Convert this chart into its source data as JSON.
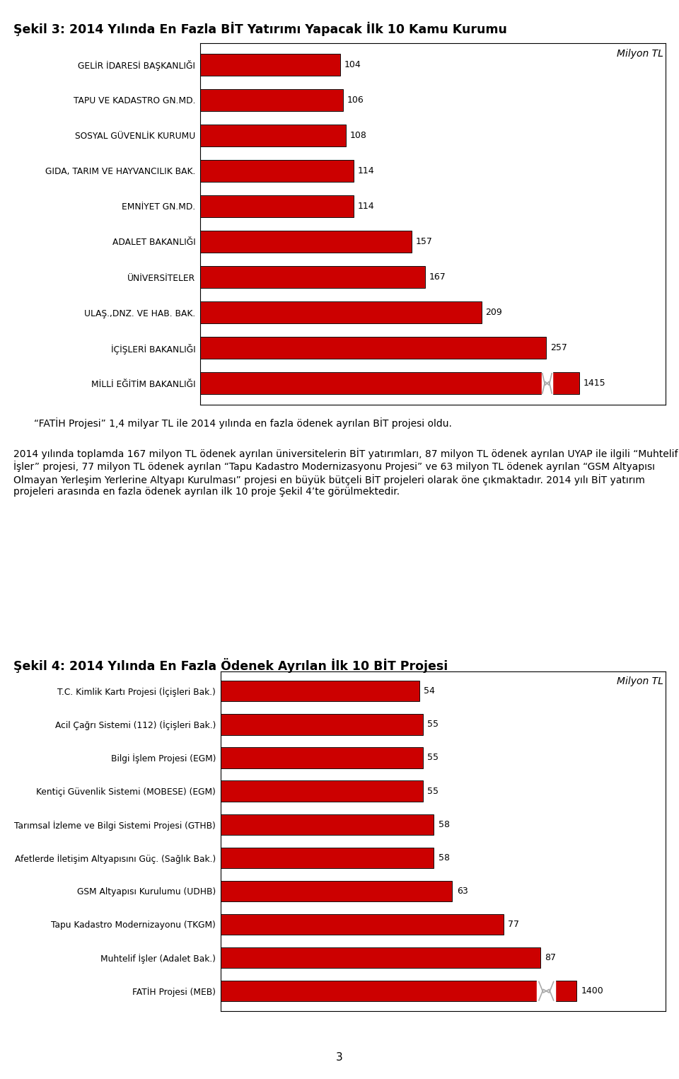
{
  "title1": "Şekil 3: 2014 Yılında En Fazla BİT Yatırımı Yapacak İlk 10 Kamu Kurumu",
  "chart1_categories": [
    "MİLLİ EĞİTİM BAKANLIĞI",
    "İÇİŞLERİ BAKANLIĞI",
    "ULAŞ.,DNZ. VE HAB. BAK.",
    "ÜNİVERSİTELER",
    "ADALET BAKANLIĞI",
    "EMNİYET GN.MD.",
    "GIDA, TARIM VE HAYVANCILIK BAK.",
    "SOSYAL GÜVENLİK KURUMU",
    "TAPU VE KADASTRO GN.MD.",
    "GELİR İDARESİ BAŞKANLIĞI"
  ],
  "chart1_values": [
    1415,
    257,
    209,
    167,
    157,
    114,
    114,
    108,
    106,
    104
  ],
  "chart1_display_labels": [
    "1415",
    "257",
    "209",
    "167",
    "157",
    "114",
    "114",
    "108",
    "106",
    "104"
  ],
  "chart1_bar_color": "#cc0000",
  "chart1_bar_edge_color": "#111111",
  "milyon_tl_label": "Milyon TL",
  "paragraph1": "“FATİH Projesi” 1,4 milyar TL ile 2014 yılında en fazla ödenek ayrılan BİT projesi oldu.",
  "paragraph2": "2014 yılında toplamda 167 milyon TL ödenek ayrılan üniversitelerin BİT yatırımları, 87 milyon TL ödenek ayrılan UYAP ile ilgili “Muhtelif İşler” projesi, 77 milyon TL ödenek ayrılan “Tapu Kadastro Modernizasyonu Projesi” ve 63 milyon TL ödenek ayrılan “GSM Altyapısı Olmayan Yerleşim Yerlerine Altyapı Kurulması” projesi en büyük bütçeli BİT projeleri olarak öne çıkmaktadır. 2014 yılı BİT yatırım projeleri arasında en fazla ödenek ayrılan ilk 10 proje Şekil 4’te görülmektedir.",
  "title2": "Şekil 4: 2014 Yılında En Fazla Ödenek Ayrılan İlk 10 BİT Projesi",
  "chart2_categories": [
    "FATİH Projesi (MEB)",
    "Muhtelif İşler (Adalet Bak.)",
    "Tapu Kadastro Modernizayonu (TKGM)",
    "GSM Altyapısı Kurulumu (UDHB)",
    "Afetlerde İletişim Altyapısını Güç. (Sağlık Bak.)",
    "Tarımsal İzleme ve Bilgi Sistemi Projesi (GTHB)",
    "Kentiçi Güvenlik Sistemi (MOBESE) (EGM)",
    "Bilgi İşlem Projesi (EGM)",
    "Acil Çağrı Sistemi (112) (İçişleri Bak.)",
    "T.C. Kimlik Kartı Projesi (İçişleri Bak.)"
  ],
  "chart2_values": [
    1400,
    87,
    77,
    63,
    58,
    58,
    55,
    55,
    55,
    54
  ],
  "chart2_display_labels": [
    "1400",
    "87",
    "77",
    "63",
    "58",
    "58",
    "55",
    "55",
    "55",
    "54"
  ],
  "chart2_bar_color": "#cc0000",
  "chart2_bar_edge_color": "#111111",
  "page_number": "3",
  "background_color": "#ffffff",
  "text_color": "#000000"
}
